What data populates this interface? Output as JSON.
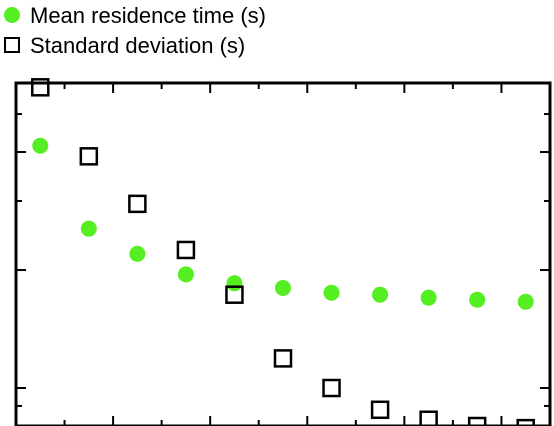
{
  "chart_data": {
    "type": "scatter",
    "title": "",
    "xlabel": "",
    "ylabel": "",
    "x": [
      1,
      2,
      3,
      4,
      5,
      6,
      7,
      8,
      9,
      10,
      11
    ],
    "xlim": [
      0.5,
      11.5
    ],
    "ylim": [
      0.8,
      6.0
    ],
    "grid": false,
    "legend_position": "top-left",
    "series": [
      {
        "name": "Mean residence time (s)",
        "marker": "filled-circle",
        "color": "#55ee22",
        "values": [
          4.15,
          2.55,
          2.2,
          1.95,
          1.85,
          1.8,
          1.75,
          1.73,
          1.7,
          1.68,
          1.66
        ]
      },
      {
        "name": "Standard deviation (s)",
        "marker": "open-square",
        "color": "#000000",
        "values": [
          5.85,
          3.9,
          2.95,
          2.25,
          1.73,
          1.19,
          1.0,
          0.88,
          0.83,
          0.8,
          0.79
        ]
      }
    ]
  }
}
